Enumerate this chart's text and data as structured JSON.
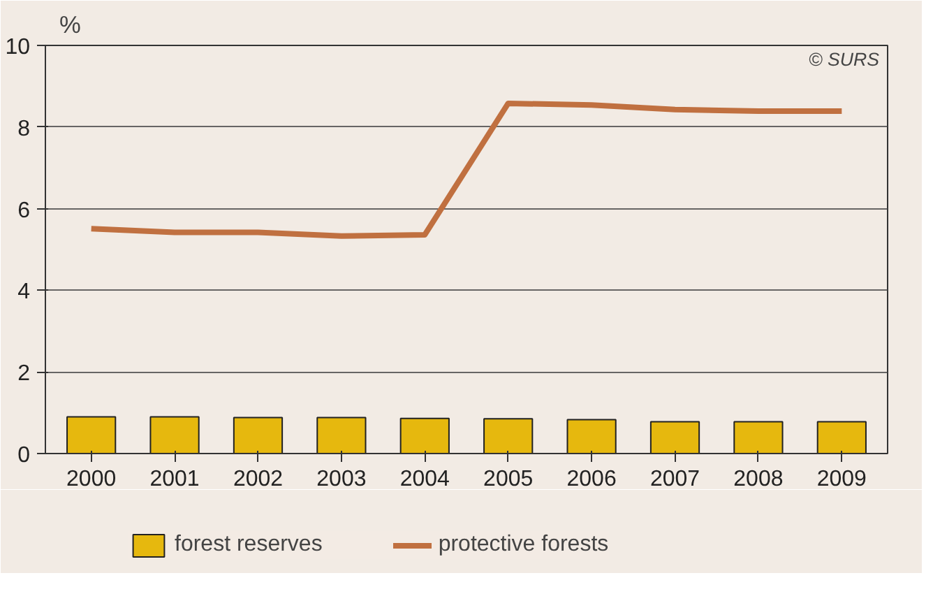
{
  "chart_data": {
    "type": "bar",
    "ylabel": "%",
    "categories": [
      "2000",
      "2001",
      "2002",
      "2003",
      "2004",
      "2005",
      "2006",
      "2007",
      "2008",
      "2009"
    ],
    "series": [
      {
        "name": "forest reserves",
        "color": "#e6b80e",
        "values": [
          0.9,
          0.9,
          0.88,
          0.88,
          0.86,
          0.85,
          0.83,
          0.78,
          0.78,
          0.78
        ]
      },
      {
        "name": "protective forests",
        "type": "line",
        "color": "#c07040",
        "values": [
          5.51,
          5.42,
          5.42,
          5.33,
          5.36,
          8.58,
          8.54,
          8.43,
          8.39,
          8.39
        ]
      }
    ],
    "ylim": [
      0,
      10
    ],
    "yticks": [
      0,
      2,
      4,
      6,
      8,
      10
    ],
    "grid": "y",
    "legend": "bottom",
    "annotations": [
      "© SURS"
    ]
  }
}
